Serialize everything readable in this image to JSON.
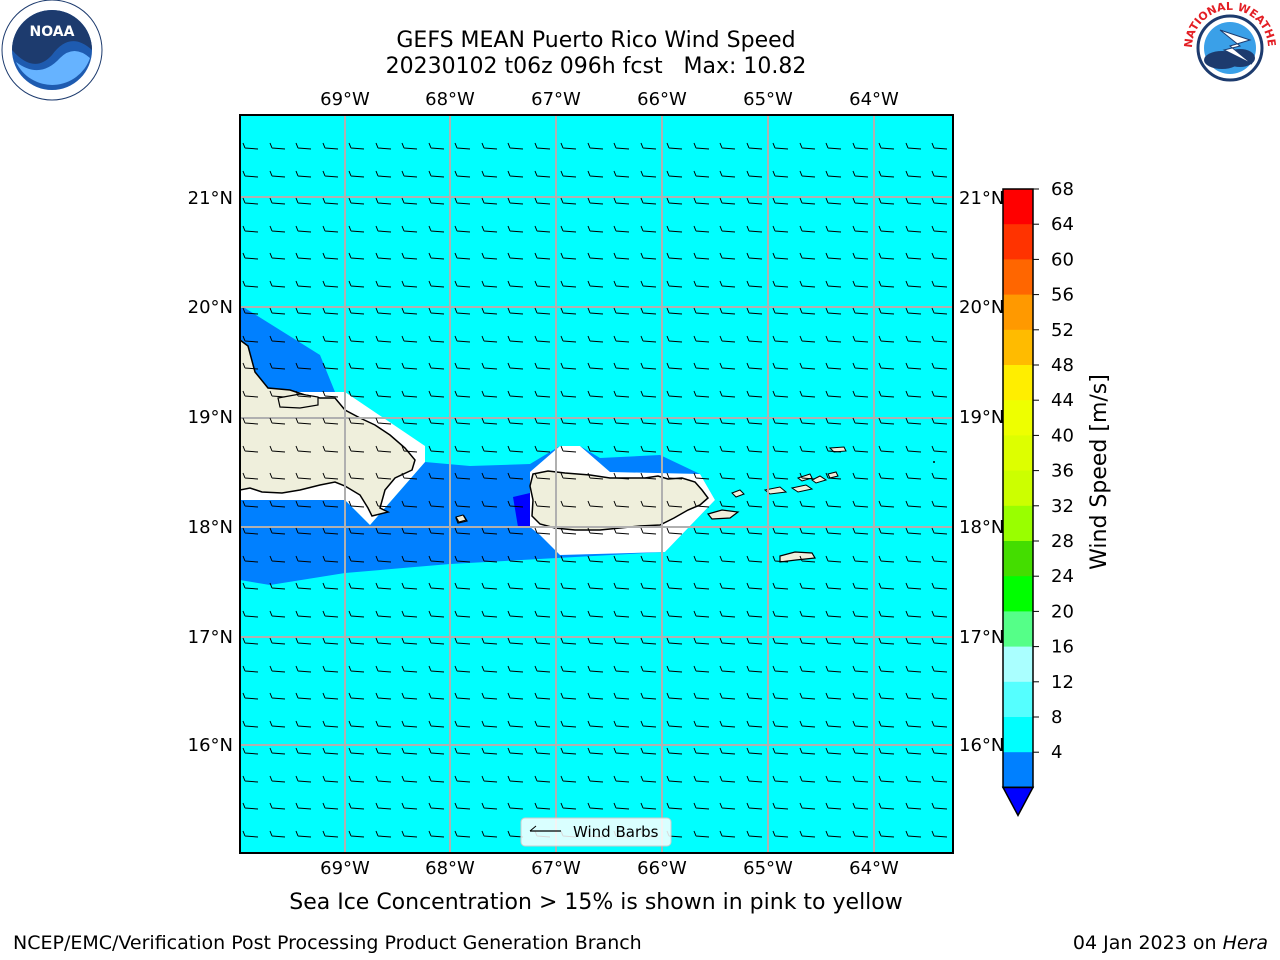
{
  "title": {
    "line1": "GEFS MEAN Puerto Rico Wind Speed",
    "line2": "20230102 t06z 096h fcst   Max: 10.82"
  },
  "map": {
    "lon_labels": [
      "69°W",
      "68°W",
      "67°W",
      "66°W",
      "65°W",
      "64°W"
    ],
    "lat_labels": [
      "21°N",
      "20°N",
      "19°N",
      "18°N",
      "17°N",
      "16°N"
    ],
    "legend_label": "Wind Barbs",
    "ocean_color": "#00ffff",
    "land_color": "#efefdc",
    "low_wind_color": "#0080ff",
    "lowest_wind_color": "#0000ff"
  },
  "colorbar": {
    "label": "Wind Speed [m/s]",
    "ticks": [
      "68",
      "64",
      "60",
      "56",
      "52",
      "48",
      "44",
      "40",
      "36",
      "32",
      "28",
      "24",
      "20",
      "16",
      "12",
      "8",
      "4"
    ],
    "colors": [
      "#ff0000",
      "#ff3300",
      "#ff6600",
      "#ff9900",
      "#ffbb00",
      "#ffee00",
      "#eeff00",
      "#ddff00",
      "#ccff00",
      "#99ff00",
      "#44dd00",
      "#00ff00",
      "#55ff88",
      "#aaffff",
      "#55ffff",
      "#00ffff",
      "#0080ff"
    ],
    "extend_color": "#0000ff"
  },
  "caption": "Sea Ice Concentration > 15% is shown in pink to yellow",
  "footer": {
    "left": "NCEP/EMC/Verification Post Processing Product Generation Branch",
    "right_date": "04 Jan 2023 on ",
    "right_machine": "Hera"
  },
  "logos": {
    "noaa_text": "NOAA",
    "nws_ring_text": "NATIONAL WEATHER SERVICE"
  }
}
